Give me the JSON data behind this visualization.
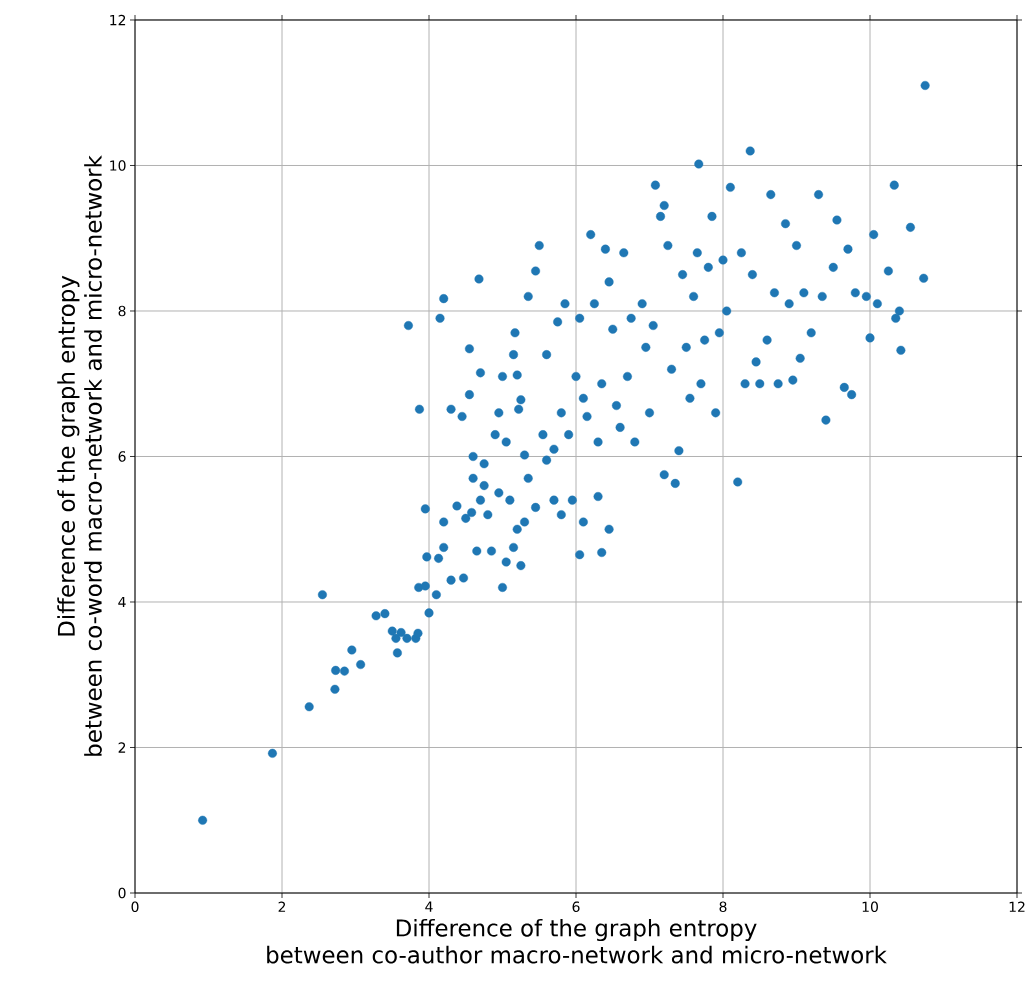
{
  "chart_data": {
    "type": "scatter",
    "xlabel": "Difference of the graph entropy between co-author macro-network and micro-network",
    "ylabel": "Difference of the graph entropy between co-word macro-network and micro-network",
    "xlim": [
      0,
      12
    ],
    "ylim": [
      0,
      12
    ],
    "xticks": [
      0,
      2,
      4,
      6,
      8,
      10,
      12
    ],
    "yticks": [
      0,
      2,
      4,
      6,
      8,
      10,
      12
    ],
    "grid": true,
    "marker": "circle",
    "series": [
      {
        "color": "#1f77b4",
        "x": [
          0.92,
          1.87,
          2.37,
          2.55,
          2.72,
          2.73,
          2.85,
          2.95,
          3.07,
          3.28,
          3.4,
          3.5,
          3.55,
          3.57,
          3.62,
          3.7,
          3.82,
          3.85,
          3.86,
          3.95,
          3.97,
          4.0,
          4.1,
          4.13,
          4.2,
          4.2,
          4.3,
          4.38,
          4.47,
          4.5,
          4.58,
          4.6,
          4.65,
          4.7,
          4.75,
          4.8,
          4.85,
          4.95,
          5.0,
          5.05,
          5.1,
          5.15,
          5.2,
          5.25,
          5.3,
          5.35,
          5.45,
          5.6,
          5.7,
          5.8,
          5.95,
          6.05,
          6.1,
          6.3,
          6.35,
          6.45,
          3.72,
          3.87,
          3.95,
          4.15,
          4.2,
          4.3,
          4.45,
          4.55,
          4.55,
          4.6,
          4.68,
          4.7,
          4.75,
          4.9,
          4.95,
          5.0,
          5.05,
          5.15,
          5.17,
          5.2,
          5.22,
          5.25,
          5.3,
          5.35,
          5.45,
          5.5,
          5.55,
          5.6,
          5.7,
          5.75,
          5.8,
          5.85,
          5.9,
          6.0,
          6.05,
          6.1,
          6.15,
          6.2,
          6.25,
          6.3,
          6.35,
          6.4,
          6.45,
          6.5,
          6.55,
          6.6,
          6.65,
          6.7,
          6.75,
          6.8,
          6.9,
          6.95,
          7.0,
          7.05,
          7.08,
          7.15,
          7.2,
          7.2,
          7.25,
          7.3,
          7.35,
          7.4,
          7.45,
          7.5,
          7.55,
          7.6,
          7.65,
          7.67,
          7.7,
          7.75,
          7.8,
          7.85,
          7.9,
          7.95,
          8.0,
          8.05,
          8.1,
          8.2,
          8.25,
          8.3,
          8.37,
          8.4,
          8.45,
          8.5,
          8.6,
          8.65,
          8.7,
          8.75,
          8.85,
          8.9,
          8.95,
          9.0,
          9.05,
          9.1,
          9.2,
          9.3,
          9.35,
          9.4,
          9.5,
          9.55,
          9.65,
          9.7,
          9.75,
          9.8,
          9.95,
          10.0,
          10.05,
          10.1,
          10.25,
          10.33,
          10.35,
          10.4,
          10.42,
          10.55,
          10.73,
          10.75
        ],
        "values": [
          1.0,
          1.92,
          2.56,
          4.1,
          2.8,
          3.06,
          3.05,
          3.34,
          3.14,
          3.81,
          3.84,
          3.6,
          3.5,
          3.3,
          3.58,
          3.5,
          3.5,
          3.57,
          4.2,
          4.22,
          4.62,
          3.85,
          4.1,
          4.6,
          4.75,
          5.1,
          4.3,
          5.32,
          4.33,
          5.15,
          5.23,
          5.7,
          4.7,
          5.4,
          5.6,
          5.2,
          4.7,
          5.5,
          4.2,
          4.55,
          5.4,
          4.75,
          5.0,
          4.5,
          5.1,
          5.7,
          5.3,
          5.95,
          5.4,
          5.2,
          5.4,
          4.65,
          5.1,
          5.45,
          4.68,
          5.0,
          7.8,
          6.65,
          5.28,
          7.9,
          8.17,
          6.65,
          6.55,
          7.48,
          6.85,
          6.0,
          8.44,
          7.15,
          5.9,
          6.3,
          6.6,
          7.1,
          6.2,
          7.4,
          7.7,
          7.12,
          6.65,
          6.78,
          6.02,
          8.2,
          8.55,
          8.9,
          6.3,
          7.4,
          6.1,
          7.85,
          6.6,
          8.1,
          6.3,
          7.1,
          7.9,
          6.8,
          6.55,
          9.05,
          8.1,
          6.2,
          7.0,
          8.85,
          8.4,
          7.75,
          6.7,
          6.4,
          8.8,
          7.1,
          7.9,
          6.2,
          8.1,
          7.5,
          6.6,
          7.8,
          9.73,
          9.3,
          9.45,
          5.75,
          8.9,
          7.2,
          5.63,
          6.08,
          8.5,
          7.5,
          6.8,
          8.2,
          8.8,
          10.02,
          7.0,
          7.6,
          8.6,
          9.3,
          6.6,
          7.7,
          8.7,
          8.0,
          9.7,
          5.65,
          8.8,
          7.0,
          10.2,
          8.5,
          7.3,
          7.0,
          7.6,
          9.6,
          8.25,
          7.0,
          9.2,
          8.1,
          7.05,
          8.9,
          7.35,
          8.25,
          7.7,
          9.6,
          8.2,
          6.5,
          8.6,
          9.25,
          6.95,
          8.85,
          6.85,
          8.25,
          8.2,
          7.63,
          9.05,
          8.1,
          8.55,
          9.73,
          7.9,
          8.0,
          7.46,
          9.15,
          8.45,
          11.1
        ]
      }
    ]
  }
}
